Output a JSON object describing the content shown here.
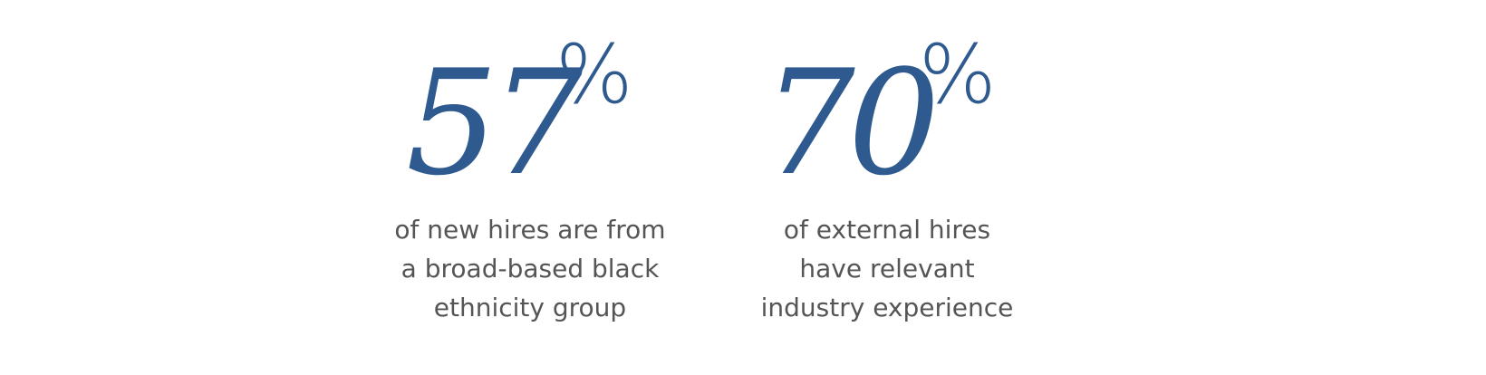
{
  "accent_color": "#2e5a8f",
  "text_color": "#555555",
  "stats": [
    {
      "value": "57",
      "unit": "%",
      "caption_lines": [
        "of new hires are from",
        "a broad-based black",
        "ethnicity group"
      ]
    },
    {
      "value": "70",
      "unit": "%",
      "caption_lines": [
        "of external hires",
        "have relevant",
        "industry experience"
      ]
    }
  ]
}
